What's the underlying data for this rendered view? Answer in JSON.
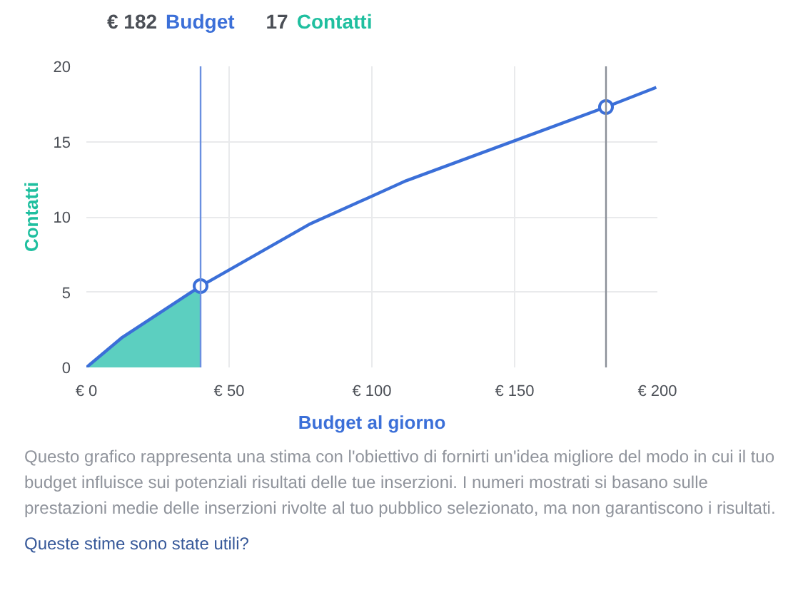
{
  "chart_data": {
    "type": "line",
    "xlabel": "Budget al giorno",
    "ylabel": "Contatti",
    "annotations": [
      "€ 182",
      "Budget",
      "17",
      "Contatti",
      "Questo grafico rappresenta una stima con l'obiettivo di fornirti un'idea migliore del modo in cui il tuo budget influisce sui potenziali risultati delle tue inserzioni. I numeri mostrati si basano sulle prestazioni medie delle inserzioni rivolte al tuo pubblico selezionato, ma non garantiscono i risultati.",
      "Queste stime sono state utili?"
    ],
    "series": [
      {
        "type": "area",
        "color": "#5ccfc0",
        "x": [
          0,
          12.6,
          40
        ],
        "values": [
          0,
          2.0,
          5.4
        ]
      },
      {
        "color": "#3b6fd8",
        "x": [
          0,
          12.6,
          40,
          78,
          112,
          182,
          199.6
        ],
        "values": [
          0,
          2.0,
          5.4,
          9.5,
          12.4,
          17.3,
          18.6
        ]
      },
      {
        "type": "scatter",
        "color": "#3b6fd8",
        "marker": "circle",
        "x": [
          40,
          182
        ],
        "values": [
          5.4,
          17.3
        ]
      }
    ],
    "ref_lines": [
      {
        "axis": "x",
        "value": 40,
        "color": "#6a8fe0"
      },
      {
        "axis": "x",
        "value": 182,
        "color": "#8a8f98"
      }
    ],
    "xlim": [
      0,
      200
    ],
    "ylim": [
      0,
      20
    ],
    "xticks": [
      {
        "value": 0,
        "label": "€ 0"
      },
      {
        "value": 50,
        "label": "€ 50"
      },
      {
        "value": 100,
        "label": "€ 100"
      },
      {
        "value": 150,
        "label": "€ 150"
      },
      {
        "value": 200,
        "label": "€ 200"
      }
    ],
    "yticks": [
      0,
      5,
      10,
      15,
      20
    ],
    "grid": true,
    "line_style": "solid"
  }
}
